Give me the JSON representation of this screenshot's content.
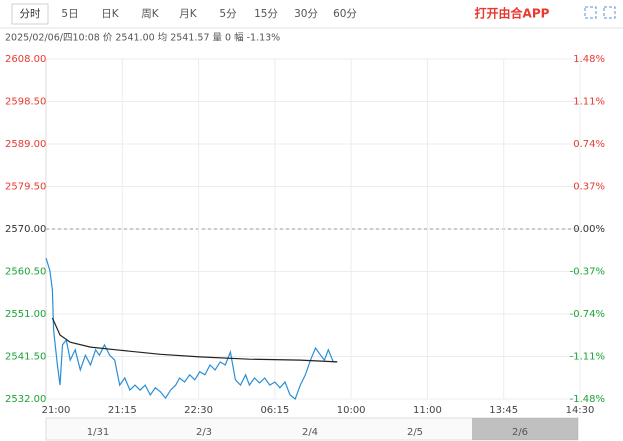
{
  "toolbar": {
    "tabs": [
      "分时",
      "5日",
      "日K",
      "周K",
      "月K",
      "5分",
      "15分",
      "30分",
      "60分"
    ],
    "app_button": "打开由合APP"
  },
  "info_line": "2025/02/06/四10:08 价 2541.00 均 2541.57 量 0 幅 -1.13%",
  "chart_data": {
    "type": "line",
    "xlim": [
      0,
      420
    ],
    "xticks": [
      {
        "value": 0,
        "label": "21:00"
      },
      {
        "value": 60,
        "label": "21:15"
      },
      {
        "value": 120,
        "label": "22:30"
      },
      {
        "value": 180,
        "label": "06:15"
      },
      {
        "value": 240,
        "label": "10:00"
      },
      {
        "value": 300,
        "label": "11:00"
      },
      {
        "value": 360,
        "label": "13:45"
      },
      {
        "value": 420,
        "label": "14:30"
      }
    ],
    "ylim": [
      2532,
      2608
    ],
    "yticks": [
      {
        "value": 2608,
        "label": "2608.00"
      },
      {
        "value": 2598.5,
        "label": "2598.50"
      },
      {
        "value": 2589,
        "label": "2589.00"
      },
      {
        "value": 2579.5,
        "label": "2579.50"
      },
      {
        "value": 2570,
        "label": "2570.00"
      },
      {
        "value": 2560.5,
        "label": "2560.50"
      },
      {
        "value": 2551,
        "label": "2551.00"
      },
      {
        "value": 2541.5,
        "label": "2541.50"
      },
      {
        "value": 2532,
        "label": "2532.00"
      }
    ],
    "y2lim": [
      -1.48,
      1.48
    ],
    "y2ticks": [
      {
        "value": 1.48,
        "label": "1.48%"
      },
      {
        "value": 1.11,
        "label": "1.11%"
      },
      {
        "value": 0.74,
        "label": "0.74%"
      },
      {
        "value": 0.37,
        "label": "0.37%"
      },
      {
        "value": 0,
        "label": "0.00%"
      },
      {
        "value": -0.37,
        "label": "-0.37%"
      },
      {
        "value": -0.74,
        "label": "-0.74%"
      },
      {
        "value": -1.11,
        "label": "-1.11%"
      },
      {
        "value": -1.48,
        "label": "-1.48%"
      }
    ],
    "reference": 2570,
    "grid": true,
    "series": [
      {
        "color": "#2b8fd6",
        "x": [
          0,
          3,
          5,
          6,
          9,
          11,
          13,
          16,
          19,
          23,
          27,
          31,
          35,
          39,
          42,
          46,
          50,
          54,
          58,
          62,
          66,
          70,
          74,
          78,
          82,
          86,
          90,
          94,
          98,
          102,
          105,
          109,
          113,
          117,
          121,
          125,
          129,
          133,
          137,
          141,
          145,
          149,
          153,
          157,
          160,
          164,
          168,
          172,
          176,
          180,
          184,
          188,
          192,
          196,
          200,
          204,
          208,
          212,
          216,
          219,
          222,
          226,
          229
        ],
        "values": [
          2563.5,
          2560.8,
          2556.4,
          2547.4,
          2539.6,
          2535.1,
          2544.1,
          2545.2,
          2540.7,
          2543.0,
          2538.5,
          2541.8,
          2539.6,
          2543.0,
          2541.8,
          2544.1,
          2541.8,
          2540.7,
          2535.1,
          2536.7,
          2534.0,
          2535.1,
          2534.0,
          2535.1,
          2532.9,
          2534.5,
          2533.6,
          2532.2,
          2534.0,
          2535.1,
          2536.7,
          2535.8,
          2537.4,
          2536.3,
          2538.1,
          2537.4,
          2539.6,
          2538.5,
          2540.3,
          2539.6,
          2542.5,
          2536.3,
          2535.1,
          2537.4,
          2535.1,
          2536.7,
          2535.6,
          2536.7,
          2535.1,
          2535.8,
          2534.5,
          2535.8,
          2532.9,
          2532.0,
          2535.1,
          2537.4,
          2540.7,
          2543.4,
          2541.8,
          2540.7,
          2543.0,
          2540.3,
          2540.3
        ]
      },
      {
        "color": "#222222",
        "x": [
          5,
          11,
          19,
          35,
          58,
          90,
          121,
          160,
          200,
          229
        ],
        "values": [
          2550.1,
          2546.3,
          2544.7,
          2543.6,
          2542.9,
          2542.0,
          2541.4,
          2540.9,
          2540.7,
          2540.3
        ]
      }
    ]
  },
  "navigator": {
    "dates": [
      "1/31",
      "2/3",
      "2/4",
      "2/5",
      "2/6"
    ]
  }
}
